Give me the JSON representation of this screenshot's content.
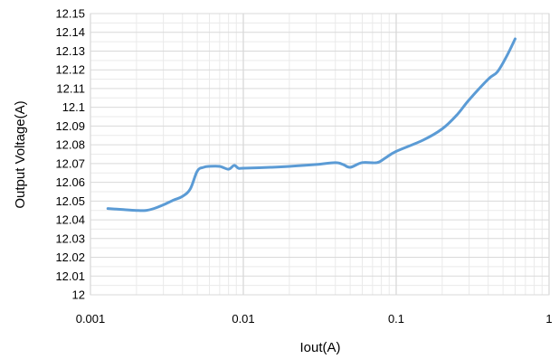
{
  "chart_data": {
    "type": "line",
    "title": "",
    "xlabel": "Iout(A)",
    "ylabel": "Output Voltage(A)",
    "x_scale": "log",
    "xlim": [
      0.001,
      1
    ],
    "ylim": [
      12.0,
      12.15
    ],
    "grid": true,
    "x_ticks": [
      {
        "value": 0.001,
        "label": "0.001"
      },
      {
        "value": 0.01,
        "label": "0.01"
      },
      {
        "value": 0.1,
        "label": "0.1"
      },
      {
        "value": 1,
        "label": "1"
      }
    ],
    "y_ticks": [
      {
        "value": 12.0,
        "label": "12"
      },
      {
        "value": 12.01,
        "label": "12.01"
      },
      {
        "value": 12.02,
        "label": "12.02"
      },
      {
        "value": 12.03,
        "label": "12.03"
      },
      {
        "value": 12.04,
        "label": "12.04"
      },
      {
        "value": 12.05,
        "label": "12.05"
      },
      {
        "value": 12.06,
        "label": "12.06"
      },
      {
        "value": 12.07,
        "label": "12.07"
      },
      {
        "value": 12.08,
        "label": "12.08"
      },
      {
        "value": 12.09,
        "label": "12.09"
      },
      {
        "value": 12.1,
        "label": "12.1"
      },
      {
        "value": 12.11,
        "label": "12.11"
      },
      {
        "value": 12.12,
        "label": "12.12"
      },
      {
        "value": 12.13,
        "label": "12.13"
      },
      {
        "value": 12.14,
        "label": "12.14"
      },
      {
        "value": 12.15,
        "label": "12.15"
      }
    ],
    "series": [
      {
        "color": "#5b9bd5",
        "x": [
          0.0013,
          0.0016,
          0.002,
          0.0023,
          0.0026,
          0.003,
          0.0035,
          0.004,
          0.0045,
          0.005,
          0.0055,
          0.006,
          0.007,
          0.008,
          0.0087,
          0.0093,
          0.01,
          0.015,
          0.02,
          0.03,
          0.04,
          0.045,
          0.05,
          0.06,
          0.075,
          0.085,
          0.1,
          0.15,
          0.2,
          0.25,
          0.3,
          0.4,
          0.46,
          0.53,
          0.6
        ],
        "y": [
          12.046,
          12.0455,
          12.045,
          12.045,
          12.046,
          12.048,
          12.0505,
          12.0525,
          12.0565,
          12.066,
          12.068,
          12.0685,
          12.0685,
          12.067,
          12.069,
          12.0675,
          12.0675,
          12.068,
          12.0685,
          12.0695,
          12.0705,
          12.0695,
          12.068,
          12.0705,
          12.0705,
          12.073,
          12.0765,
          12.0825,
          12.0885,
          12.096,
          12.104,
          12.115,
          12.119,
          12.1275,
          12.1365
        ]
      }
    ]
  }
}
